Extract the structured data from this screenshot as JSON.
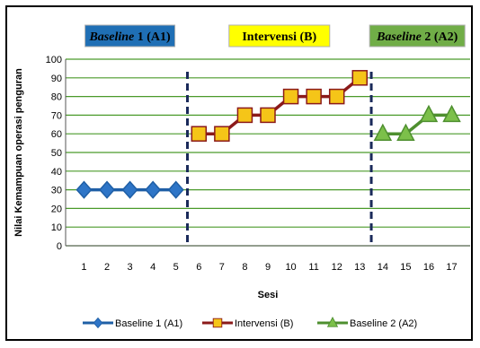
{
  "chart_data": {
    "type": "line",
    "ylabel": "Nilai Kemampuan operasi penguran",
    "xlabel": "Sesi",
    "ylim": [
      0,
      100
    ],
    "yticks": [
      0,
      10,
      20,
      30,
      40,
      50,
      60,
      70,
      80,
      90,
      100
    ],
    "grid": true,
    "legend_position": "bottom",
    "phases": [
      {
        "title_italic": "Baseline",
        "title_rest": " 1 (A1)",
        "fill": "#1f6fb5",
        "text_color": "#000000"
      },
      {
        "title_italic": "",
        "title_rest": "Intervensi (B)",
        "fill": "#ffff00",
        "text_color": "#000000"
      },
      {
        "title_italic": "Baseline",
        "title_rest": " 2 (A2)",
        "fill": "#70ad47",
        "text_color": "#000000"
      }
    ],
    "series": [
      {
        "name": "Baseline 1 (A1)",
        "marker": "diamond",
        "color": "#1f5fa6",
        "fill": "#2e75c7",
        "x": [
          1,
          2,
          3,
          4,
          5
        ],
        "y": [
          30,
          30,
          30,
          30,
          30
        ]
      },
      {
        "name": "Intervensi (B)",
        "marker": "square",
        "color": "#8b1a1a",
        "fill": "#f5c518",
        "x": [
          6,
          7,
          8,
          9,
          10,
          11,
          12,
          13
        ],
        "y": [
          60,
          60,
          70,
          70,
          80,
          80,
          80,
          90
        ]
      },
      {
        "name": "Baseline 2 (A2)",
        "marker": "triangle",
        "color": "#4e8f2f",
        "fill": "#7cc04a",
        "x": [
          14,
          15,
          16,
          17
        ],
        "y": [
          60,
          60,
          70,
          70
        ]
      }
    ],
    "x_ticks": [
      "1",
      "2",
      "3",
      "4",
      "5",
      "6",
      "7",
      "8",
      "9",
      "10",
      "11",
      "12",
      "13",
      "14",
      "15",
      "16",
      "17"
    ],
    "phase_separators_after": [
      5,
      13
    ]
  }
}
